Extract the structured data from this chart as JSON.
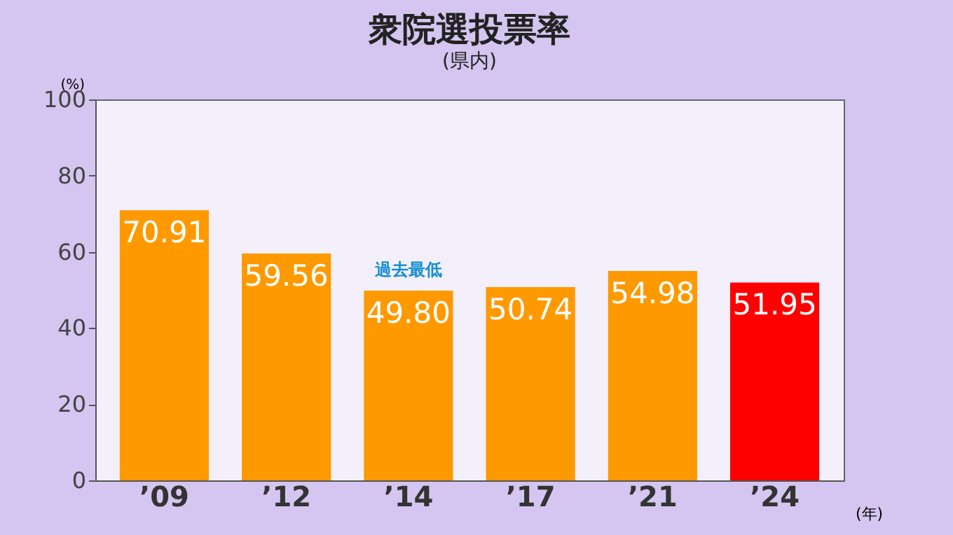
{
  "chart_data": {
    "type": "bar",
    "title": "衆院選投票率",
    "subtitle": "(県内)",
    "ylabel": "(%)",
    "xlabel": "(年)",
    "categories": [
      "’09",
      "’12",
      "’14",
      "’17",
      "’21",
      "’24"
    ],
    "values": [
      70.91,
      59.56,
      49.8,
      50.74,
      54.98,
      51.95
    ],
    "value_labels": [
      "70.91",
      "59.56",
      "49.80",
      "50.74",
      "54.98",
      "51.95"
    ],
    "colors": [
      "#ff9900",
      "#ff9900",
      "#ff9900",
      "#ff9900",
      "#ff9900",
      "#ff0000"
    ],
    "ylim": [
      0,
      100
    ],
    "yticks": [
      0,
      20,
      40,
      60,
      80,
      100
    ],
    "grid": false,
    "annotations": [
      {
        "text": "過去最低",
        "x": "’14",
        "y": 49.8
      }
    ]
  }
}
